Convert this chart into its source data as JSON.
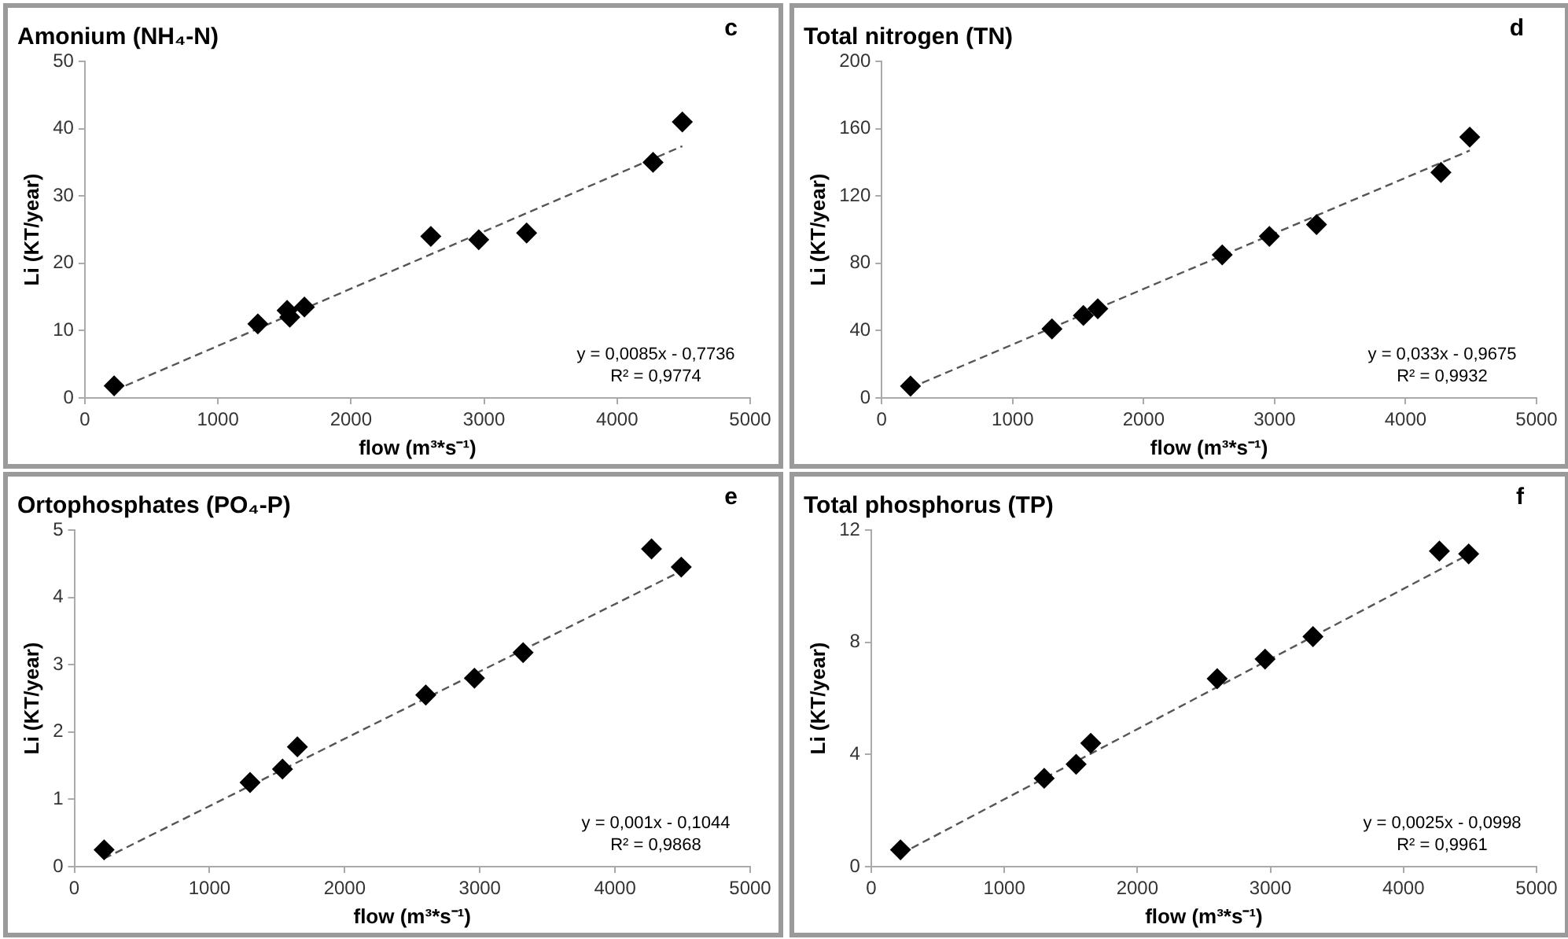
{
  "chart_data": [
    {
      "type": "scatter",
      "title": "Amonium (NH₄-N)",
      "xlabel": "flow (m³*s⁻¹)",
      "ylabel": "Li (KT/year)",
      "xlim": [
        0,
        5000
      ],
      "xticks": [
        0,
        1000,
        2000,
        3000,
        4000,
        5000
      ],
      "ylim": [
        0,
        50
      ],
      "yticks": [
        0,
        10,
        20,
        30,
        40,
        50
      ],
      "grid": false,
      "series": [
        {
          "color": "#000000",
          "marker": "diamond",
          "x": [
            220,
            1300,
            1520,
            1540,
            1650,
            2600,
            2960,
            3320,
            4270,
            4490
          ],
          "values": [
            1.8,
            11,
            13,
            12,
            13.5,
            24,
            23.5,
            24.5,
            35,
            41
          ]
        },
        {
          "type": "line",
          "marker": "none",
          "color": "#555555",
          "line_style": "dashed",
          "x": [
            220,
            4490
          ],
          "values": [
            1.1,
            37.4
          ]
        }
      ],
      "annotations": [
        "c",
        "y = 0,0085x - 0,7736",
        "R² = 0,9774"
      ]
    },
    {
      "type": "scatter",
      "title": "Total nitrogen (TN)",
      "xlabel": "flow (m³*s⁻¹)",
      "ylabel": "Li (KT/year)",
      "xlim": [
        0,
        5000
      ],
      "xticks": [
        0,
        1000,
        2000,
        3000,
        4000,
        5000
      ],
      "ylim": [
        0,
        200
      ],
      "yticks": [
        0,
        40,
        80,
        120,
        160,
        200
      ],
      "grid": false,
      "series": [
        {
          "color": "#000000",
          "marker": "diamond",
          "x": [
            220,
            1300,
            1520,
            1540,
            1650,
            2600,
            2960,
            3320,
            4270,
            4490
          ],
          "values": [
            7,
            41,
            null,
            49,
            53,
            85,
            96,
            103,
            134,
            155
          ]
        },
        {
          "type": "line",
          "marker": "none",
          "color": "#555555",
          "line_style": "dashed",
          "x": [
            220,
            4490
          ],
          "values": [
            6,
            147
          ]
        }
      ],
      "annotations": [
        "d",
        "y = 0,033x - 0,9675",
        "R² = 0,9932"
      ]
    },
    {
      "type": "scatter",
      "title": "Ortophosphates (PO₄-P)",
      "xlabel": "flow (m³*s⁻¹)",
      "ylabel": "Li (KT/year)",
      "xlim": [
        0,
        5000
      ],
      "xticks": [
        0,
        1000,
        2000,
        3000,
        4000,
        5000
      ],
      "ylim": [
        0,
        5
      ],
      "yticks": [
        0,
        1,
        2,
        3,
        4,
        5
      ],
      "grid": false,
      "series": [
        {
          "color": "#000000",
          "marker": "diamond",
          "x": [
            220,
            1300,
            1520,
            1540,
            1650,
            2600,
            2960,
            3320,
            4270,
            4490
          ],
          "values": [
            0.25,
            1.25,
            null,
            1.45,
            1.78,
            2.55,
            2.8,
            3.18,
            4.72,
            4.45
          ]
        },
        {
          "type": "line",
          "marker": "none",
          "color": "#555555",
          "line_style": "dashed",
          "x": [
            220,
            4490
          ],
          "values": [
            0.12,
            4.39
          ]
        }
      ],
      "annotations": [
        "e",
        "y = 0,001x - 0,1044",
        "R² = 0,9868"
      ]
    },
    {
      "type": "scatter",
      "title": "Total phosphorus (TP)",
      "xlabel": "flow (m³*s⁻¹)",
      "ylabel": "Li (KT/year)",
      "xlim": [
        0,
        5000
      ],
      "xticks": [
        0,
        1000,
        2000,
        3000,
        4000,
        5000
      ],
      "ylim": [
        0,
        12
      ],
      "yticks": [
        0,
        4,
        8,
        12
      ],
      "grid": false,
      "series": [
        {
          "color": "#000000",
          "marker": "diamond",
          "x": [
            220,
            1300,
            1520,
            1540,
            1650,
            2600,
            2960,
            3320,
            4270,
            4490
          ],
          "values": [
            0.6,
            3.15,
            null,
            3.65,
            4.4,
            6.7,
            7.4,
            8.2,
            11.25,
            11.15
          ]
        },
        {
          "type": "line",
          "marker": "none",
          "color": "#555555",
          "line_style": "dashed",
          "x": [
            220,
            4490
          ],
          "values": [
            0.45,
            11.13
          ]
        }
      ],
      "annotations": [
        "f",
        "y = 0,0025x - 0,0998",
        "R² = 0,9961"
      ]
    }
  ]
}
